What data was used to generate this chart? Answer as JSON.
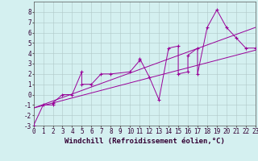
{
  "xlabel": "Windchill (Refroidissement éolien,°C)",
  "xlim": [
    0,
    23
  ],
  "ylim": [
    -3,
    9
  ],
  "xticks": [
    0,
    1,
    2,
    3,
    4,
    5,
    6,
    7,
    8,
    9,
    10,
    11,
    12,
    13,
    14,
    15,
    16,
    17,
    18,
    19,
    20,
    21,
    22,
    23
  ],
  "yticks": [
    -3,
    -2,
    -1,
    0,
    1,
    2,
    3,
    4,
    5,
    6,
    7,
    8
  ],
  "scatter_x": [
    0,
    1,
    2,
    2,
    3,
    4,
    5,
    5,
    6,
    7,
    8,
    10,
    11,
    11,
    12,
    13,
    14,
    15,
    15,
    16,
    16,
    17,
    17,
    18,
    19,
    20,
    21,
    22,
    23
  ],
  "scatter_y": [
    -3,
    -1,
    -1,
    -0.8,
    0,
    0,
    2.2,
    1,
    1,
    2,
    2,
    2.2,
    3.3,
    3.5,
    1.7,
    -0.5,
    4.5,
    4.7,
    2,
    2.2,
    3.8,
    4.5,
    2,
    6.5,
    8.2,
    6.5,
    5.5,
    4.5,
    4.5
  ],
  "line1_x": [
    0,
    23
  ],
  "line1_y": [
    -1.3,
    4.3
  ],
  "line2_x": [
    0,
    23
  ],
  "line2_y": [
    -1.3,
    6.5
  ],
  "color": "#990099",
  "bg_color": "#d4f0f0",
  "grid_color": "#b0c8c8",
  "tick_fontsize": 5.5,
  "label_fontsize": 6.5
}
